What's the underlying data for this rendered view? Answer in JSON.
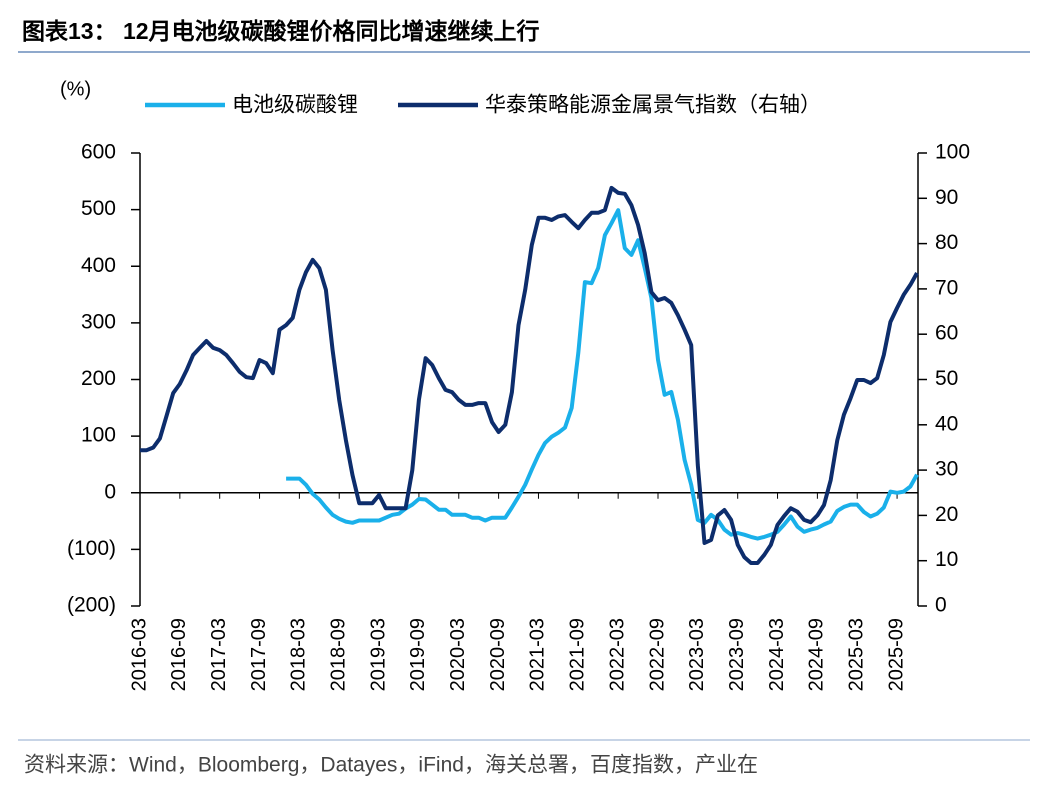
{
  "chart_data": {
    "type": "line",
    "title": "图表13：  12月电池级碳酸锂价格同比增速继续上行",
    "y_label": "(%)",
    "source": "资料来源：Wind，Bloomberg，Datayes，iFind，海关总署，百度指数，产业在",
    "categories": [
      "2016-03",
      null,
      null,
      null,
      null,
      null,
      "2016-09",
      null,
      null,
      null,
      null,
      null,
      "2017-03",
      null,
      null,
      null,
      null,
      null,
      "2017-09",
      null,
      null,
      null,
      null,
      null,
      "2018-03",
      null,
      null,
      null,
      null,
      null,
      "2018-09",
      null,
      null,
      null,
      null,
      null,
      "2019-03",
      null,
      null,
      null,
      null,
      null,
      "2019-09",
      null,
      null,
      null,
      null,
      null,
      "2020-03",
      null,
      null,
      null,
      null,
      null,
      "2020-09",
      null,
      null,
      null,
      null,
      null,
      "2021-03",
      null,
      null,
      null,
      null,
      null,
      "2021-09",
      null,
      null,
      null,
      null,
      null,
      "2022-03",
      null,
      null,
      null,
      null,
      null,
      "2022-09",
      null,
      null,
      null,
      null,
      null,
      "2023-03",
      null,
      null,
      null,
      null,
      null,
      "2023-09",
      null,
      null,
      null,
      null,
      null,
      "2024-03",
      null,
      null,
      null,
      null,
      null,
      "2024-09",
      null,
      null,
      null,
      null,
      null,
      "2025-03",
      null,
      null,
      null,
      null,
      null,
      "2025-09",
      null,
      null,
      null
    ],
    "series": [
      {
        "name": "电池级碳酸锂",
        "color": "#1ab0ea",
        "axis": "y",
        "values": [
          null,
          null,
          null,
          null,
          null,
          null,
          null,
          null,
          null,
          null,
          null,
          null,
          null,
          null,
          null,
          null,
          null,
          null,
          null,
          null,
          null,
          null,
          25,
          25,
          25,
          14,
          -2,
          -12,
          -26,
          -39,
          -46,
          -51,
          -53,
          -49,
          -49,
          -49,
          -49,
          -44,
          -39,
          -37,
          -28,
          -21,
          -11,
          -12,
          -21,
          -30,
          -30,
          -39,
          -39,
          -39,
          -44,
          -44,
          -49,
          -44,
          -44,
          -44,
          -26,
          -7,
          14,
          41,
          67,
          88,
          99,
          106,
          115,
          150,
          247,
          372,
          370,
          397,
          455,
          476,
          499,
          432,
          420,
          446,
          397,
          344,
          235,
          173,
          178,
          129,
          58,
          14,
          -48,
          -53,
          -39,
          -48,
          -65,
          -74,
          -71,
          -74,
          -78,
          -81,
          -78,
          -74,
          -69,
          -56,
          -42,
          -60,
          -69,
          -65,
          -62,
          -56,
          -51,
          -32,
          -25,
          -21,
          -21,
          -34,
          -42,
          -37,
          -26,
          2,
          0,
          2,
          11,
          32
        ]
      },
      {
        "name": "华泰策略能源金属景气指数（右轴）",
        "color": "#0d2d6c",
        "axis": "y2",
        "values": [
          34.4,
          34.4,
          35,
          37,
          42,
          47,
          49,
          52,
          55.4,
          57,
          58.5,
          57,
          56.5,
          55.4,
          53.6,
          51.7,
          50.5,
          50.3,
          54.3,
          53.6,
          51.4,
          61,
          62,
          63.6,
          69.8,
          73.7,
          76.4,
          74.6,
          69.8,
          56.5,
          45.5,
          36.6,
          28.9,
          22.7,
          22.7,
          22.7,
          24.5,
          21.6,
          21.6,
          21.6,
          21.6,
          30,
          45.5,
          54.7,
          53.2,
          50.3,
          47.7,
          47.2,
          45.5,
          44.4,
          44.4,
          44.8,
          44.8,
          40.6,
          38.4,
          40,
          47.2,
          62,
          69.8,
          79.7,
          85.7,
          85.7,
          85.2,
          86,
          86.3,
          84.8,
          83.4,
          85.2,
          86.8,
          86.8,
          87.4,
          92.3,
          91.2,
          91,
          88.5,
          84.1,
          77.9,
          69.3,
          67.5,
          68,
          66.9,
          64.2,
          61,
          57.6,
          31.1,
          13.9,
          14.6,
          20,
          21.2,
          19,
          13.5,
          10.8,
          9.5,
          9.5,
          11.3,
          13.5,
          17.9,
          19.9,
          21.6,
          20.8,
          19,
          18.5,
          20,
          22.3,
          27.8,
          36.6,
          42.2,
          45.9,
          49.9,
          49.9,
          49.2,
          50.3,
          55.4,
          62.7,
          65.8,
          68.7,
          70.9,
          73.5
        ]
      }
    ],
    "ylim": [
      -200,
      600
    ],
    "yticks": [
      {
        "value": -200,
        "label": "(200)"
      },
      {
        "value": -100,
        "label": "(100)"
      },
      0,
      100,
      200,
      300,
      400,
      500,
      600
    ],
    "y2lim": [
      0,
      100
    ],
    "y2ticks": [
      0,
      10,
      20,
      30,
      40,
      50,
      60,
      70,
      80,
      90,
      100
    ],
    "legend": "top"
  }
}
